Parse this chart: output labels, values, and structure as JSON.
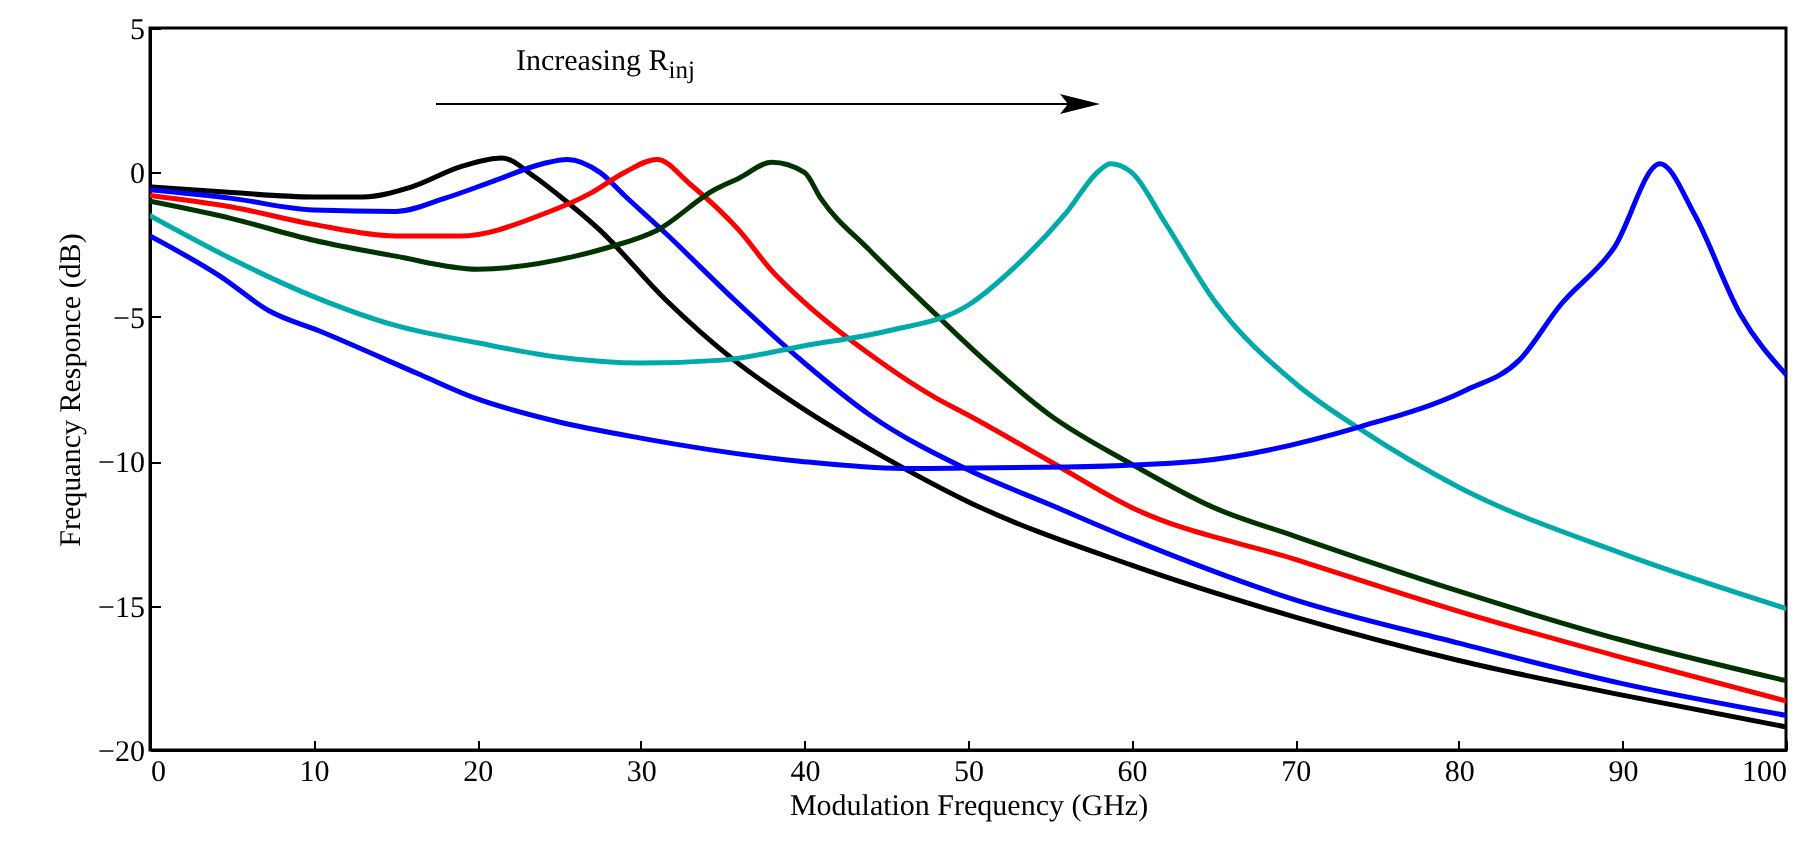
{
  "chart_data": {
    "type": "line",
    "xlabel": "Modulation Frequency (GHz)",
    "ylabel": "Frequancy Responce (dB)",
    "xlim": [
      0,
      100
    ],
    "xticks": [
      0,
      10,
      20,
      30,
      40,
      50,
      60,
      70,
      80,
      90,
      100
    ],
    "ylim": [
      -20,
      5
    ],
    "yticks": [
      -20,
      -15,
      -10,
      -5,
      0,
      5
    ],
    "grid": false,
    "line_style": "solid",
    "marker": "none",
    "annotations": [
      "Increasing R$_{inj}$"
    ],
    "series": [
      {
        "color": "#000000",
        "x": [
          0,
          5,
          10,
          13,
          16,
          19,
          21.5,
          23.5,
          25,
          27.5,
          31.5,
          35.7,
          39.7,
          45,
          50,
          60,
          70,
          80,
          90,
          100
        ],
        "values": [
          -0.5,
          -0.7,
          -0.85,
          -0.85,
          -0.5,
          0.2,
          0.5,
          -0.15,
          -0.8,
          -2.0,
          -4.4,
          -6.5,
          -8.1,
          -9.9,
          -11.4,
          -13.6,
          -15.4,
          -16.9,
          -18.1,
          -19.2
        ]
      },
      {
        "color": "#0000ff",
        "x": [
          0,
          5,
          10,
          15,
          18,
          21,
          24,
          25.5,
          27.5,
          29,
          31.5,
          35.7,
          40,
          44,
          50,
          55,
          60,
          70,
          80,
          90,
          100
        ],
        "values": [
          -0.6,
          -0.9,
          -1.3,
          -1.35,
          -0.9,
          -0.3,
          0.3,
          0.45,
          0,
          -0.8,
          -2.1,
          -4.4,
          -6.6,
          -8.4,
          -10.3,
          -11.5,
          -12.7,
          -14.8,
          -16.3,
          -17.7,
          -18.8
        ]
      },
      {
        "color": "#ff0000",
        "x": [
          0,
          5,
          10,
          15,
          19,
          24,
          27,
          29,
          31,
          33,
          36,
          38,
          40,
          44,
          48,
          50,
          55,
          60,
          70,
          80,
          90,
          100
        ],
        "values": [
          -0.8,
          -1.2,
          -1.8,
          -2.2,
          -2.2,
          -1.45,
          -0.7,
          0,
          0.45,
          -0.4,
          -2.0,
          -3.4,
          -4.5,
          -6.3,
          -7.8,
          -8.4,
          -10.0,
          -11.6,
          -13.4,
          -15.2,
          -16.8,
          -18.3
        ]
      },
      {
        "color": "#003300",
        "x": [
          0,
          5,
          10,
          15,
          20,
          26,
          28,
          31,
          34.5,
          36,
          38,
          40,
          41,
          44,
          48,
          51,
          55,
          60,
          65,
          70,
          80,
          90,
          100
        ],
        "values": [
          -1.0,
          -1.6,
          -2.35,
          -2.9,
          -3.35,
          -2.9,
          -2.6,
          -2.0,
          -0.6,
          -0.2,
          0.35,
          0.0,
          -0.9,
          -2.7,
          -4.9,
          -6.5,
          -8.4,
          -10.1,
          -11.6,
          -12.6,
          -14.5,
          -16.2,
          -17.6
        ]
      },
      {
        "color": "#00aaaa",
        "x": [
          0,
          5,
          10,
          15,
          20,
          25,
          30,
          35,
          40,
          45,
          50,
          53,
          56,
          58,
          58.7,
          60,
          62,
          65,
          70,
          74,
          80,
          90,
          100
        ],
        "values": [
          -1.5,
          -3.0,
          -4.3,
          -5.3,
          -5.9,
          -6.4,
          -6.6,
          -6.5,
          -6.0,
          -5.5,
          -4.6,
          -3.2,
          -1.4,
          0.05,
          0.3,
          0.0,
          -1.7,
          -4.4,
          -7.3,
          -8.9,
          -10.9,
          -13.2,
          -15.1
        ]
      },
      {
        "color": "#0000ff",
        "x": [
          0,
          4.3,
          7.3,
          10.4,
          16.5,
          19.8,
          24.7,
          30,
          39.7,
          46,
          56,
          64,
          74,
          80.4,
          83.7,
          86.2,
          89.5,
          92.3,
          94.4,
          97.2,
          100
        ],
        "values": [
          -2.2,
          -3.6,
          -4.8,
          -5.5,
          -7.0,
          -7.8,
          -8.6,
          -9.2,
          -10.0,
          -10.25,
          -10.2,
          -10.0,
          -8.8,
          -7.55,
          -6.5,
          -4.6,
          -2.6,
          0.3,
          -1.45,
          -4.9,
          -7.0
        ]
      }
    ]
  }
}
